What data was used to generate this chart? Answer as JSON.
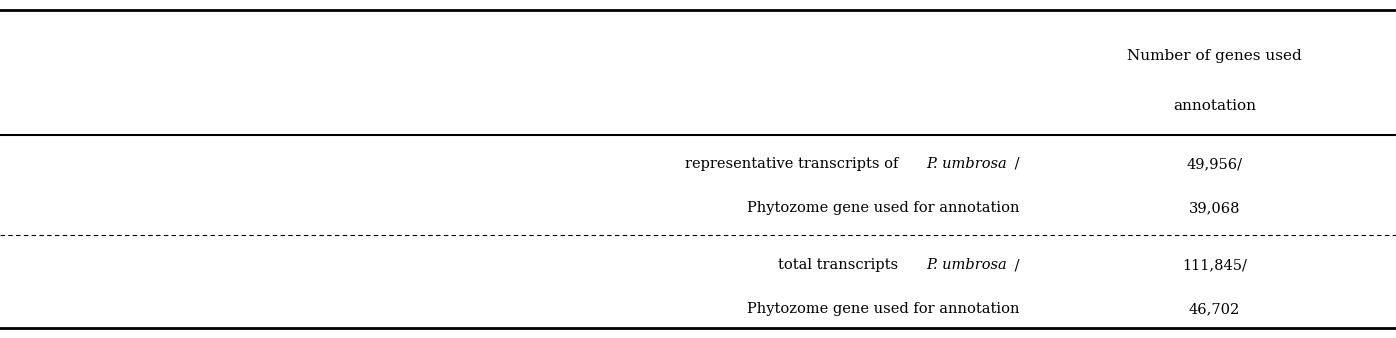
{
  "header_col1": "Number of genes used\nannotation",
  "rows": [
    {
      "label_line1": "representative transcripts of ",
      "label_italic1": "P. umbrosa",
      "label_rest1": " /",
      "label_line2": "Phytozome gene used for annotation",
      "value_line1": "49,956/",
      "value_line2": "39,068"
    },
    {
      "label_line1": "total transcripts ",
      "label_italic1": "P. umbrosa",
      "label_rest1": " /",
      "label_line2": "Phytozome gene used for annotation",
      "value_line1": "111,845/",
      "value_line2": "46,702"
    }
  ],
  "bg_color": "#ffffff",
  "text_color": "#000000",
  "font_size": 10.5,
  "header_font_size": 11
}
